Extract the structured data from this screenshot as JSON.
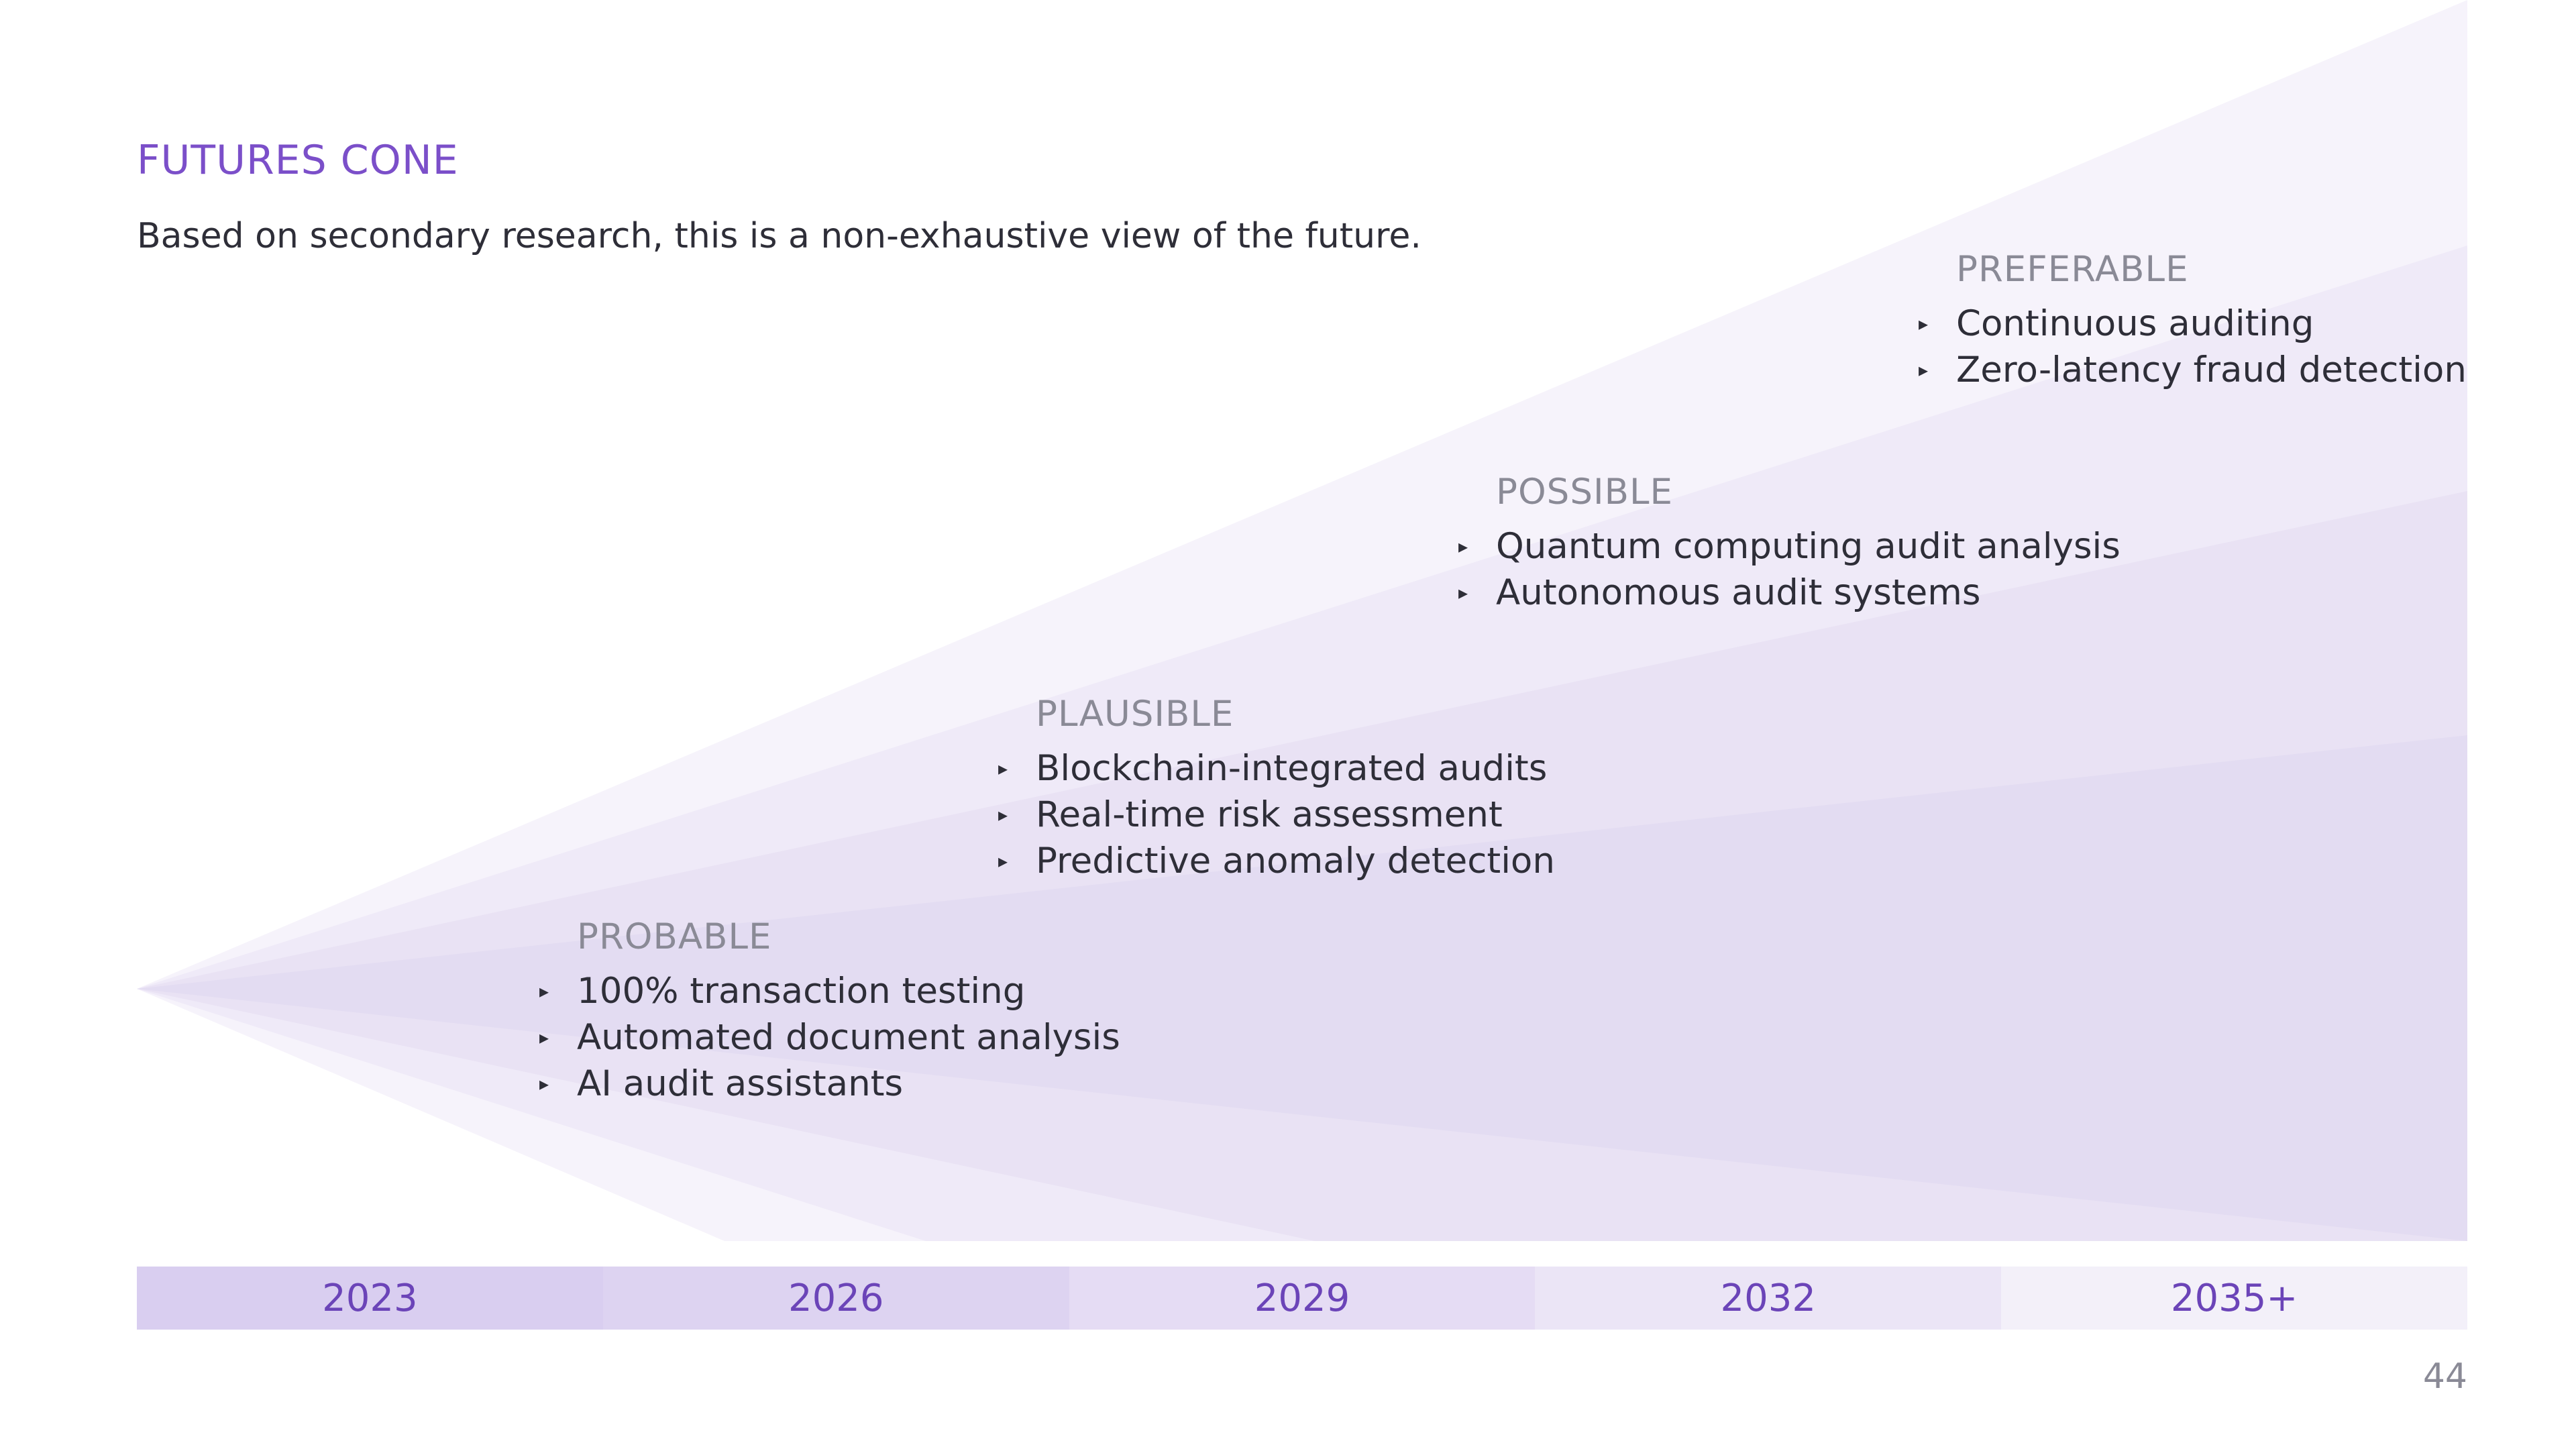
{
  "title": "FUTURES CONE",
  "subtitle": "Based on secondary research, this is a non-exhaustive view of the future.",
  "groups": [
    {
      "heading": "PREFERABLE",
      "items": [
        "Continuous auditing",
        "Zero-latency fraud detection"
      ]
    },
    {
      "heading": "POSSIBLE",
      "items": [
        "Quantum computing audit analysis",
        "Autonomous audit systems"
      ]
    },
    {
      "heading": "PLAUSIBLE",
      "items": [
        "Blockchain-integrated audits",
        "Real-time risk assessment",
        "Predictive anomaly detection"
      ]
    },
    {
      "heading": "PROBABLE",
      "items": [
        "100% transaction testing",
        "Automated document analysis",
        "AI audit assistants"
      ]
    }
  ],
  "bullet_glyph": "▸",
  "timeline": [
    "2023",
    "2026",
    "2029",
    "2032",
    "2035+"
  ],
  "page_number": "44",
  "colors": {
    "accent": "#7b4fc9",
    "cone_preferable": "#f6f3fb",
    "cone_possible": "#efeaf8",
    "cone_plausible": "#e9e2f4",
    "cone_probable": "#e3dcf2"
  }
}
